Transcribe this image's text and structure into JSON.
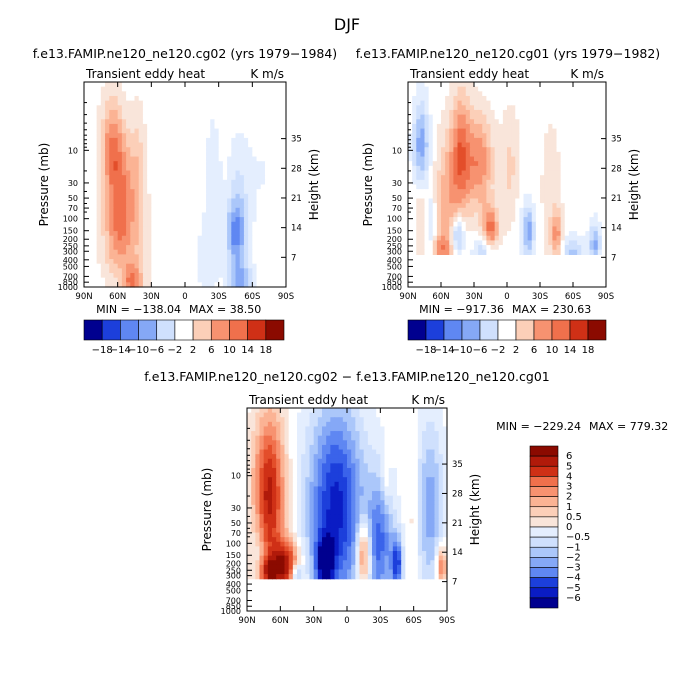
{
  "figure": {
    "title": "DJF"
  },
  "palette": {
    "blues": [
      "#00008f",
      "#0a1cc4",
      "#1c3fdb",
      "#3a63ea",
      "#5f87f2",
      "#85a8f6",
      "#abc7fa",
      "#cfe0fd",
      "#e4eefe"
    ],
    "reds": [
      "#f9e5da",
      "#fccfb8",
      "#fbb394",
      "#f79270",
      "#f0704c",
      "#e34e2a",
      "#cf3016",
      "#b11a0a",
      "#8b0a00"
    ],
    "white": "#ffffff"
  },
  "chart_data": [
    {
      "id": "panel-a",
      "type": "heatmap",
      "subtype": "latitude-pressure contour",
      "title": "f.e13.FAMIP.ne120_ne120.cg02 (yrs 1979−1984)",
      "left_string": "Transient eddy heat",
      "right_string": "K m/s",
      "xlabel": "",
      "ylabel": "Pressure (mb)",
      "ylabel_right": "Height (km)",
      "x_ticks": [
        "90N",
        "60N",
        "30N",
        "0",
        "30S",
        "60S",
        "90S"
      ],
      "x_range": [
        90,
        -90
      ],
      "y_ticks": [
        10,
        30,
        50,
        70,
        100,
        150,
        200,
        250,
        300,
        400,
        500,
        700,
        850,
        1000
      ],
      "y_range": [
        1,
        1000
      ],
      "y_scale": "log",
      "height_ticks": [
        35,
        28,
        21,
        14,
        7
      ],
      "min_text": "MIN = −138.04",
      "max_text": "MAX = 38.50",
      "data_bottom_mb": 1000,
      "colorbar": {
        "orientation": "horizontal",
        "labels": [
          "−18",
          "−14",
          "−10",
          "−6",
          "−2",
          "2",
          "6",
          "10",
          "14",
          "18"
        ]
      },
      "features": [
        {
          "lat": 65,
          "p": 10,
          "v": 1.3,
          "sl": 10,
          "sp": 0.75
        },
        {
          "lat": 55,
          "p": 40,
          "v": 1.0,
          "sl": 11,
          "sp": 0.8
        },
        {
          "lat": 60,
          "p": 200,
          "v": 0.9,
          "sl": 14,
          "sp": 0.6
        },
        {
          "lat": 47,
          "p": 900,
          "v": 1.3,
          "sl": 8,
          "sp": 0.3
        },
        {
          "lat": 42,
          "p": 20,
          "v": 0.55,
          "sl": 7,
          "sp": 0.9
        },
        {
          "lat": 40,
          "p": 300,
          "v": 0.3,
          "sl": 10,
          "sp": 0.8
        },
        {
          "lat": 15,
          "p": 100,
          "v": 0.15,
          "sl": 12,
          "sp": 1.5
        },
        {
          "lat": -45,
          "p": 170,
          "v": -1.2,
          "sl": 8,
          "sp": 0.45
        },
        {
          "lat": -48,
          "p": 60,
          "v": -0.55,
          "sl": 10,
          "sp": 0.9
        },
        {
          "lat": -50,
          "p": 900,
          "v": -1.1,
          "sl": 10,
          "sp": 0.3
        },
        {
          "lat": -25,
          "p": 25,
          "v": -0.35,
          "sl": 7,
          "sp": 0.9
        },
        {
          "lat": -20,
          "p": 400,
          "v": -0.25,
          "sl": 12,
          "sp": 0.7
        },
        {
          "lat": -70,
          "p": 20,
          "v": -0.15,
          "sl": 15,
          "sp": 1.0
        }
      ]
    },
    {
      "id": "panel-b",
      "type": "heatmap",
      "subtype": "latitude-pressure contour",
      "title": "f.e13.FAMIP.ne120_ne120.cg01 (yrs 1979−1982)",
      "left_string": "Transient eddy heat",
      "right_string": "K m/s",
      "xlabel": "",
      "ylabel": "Pressure (mb)",
      "ylabel_right": "Height (km)",
      "x_ticks": [
        "90N",
        "60N",
        "30N",
        "0",
        "30S",
        "60S",
        "90S"
      ],
      "x_range": [
        90,
        -90
      ],
      "y_ticks": [
        10,
        30,
        50,
        70,
        100,
        150,
        200,
        250,
        300,
        400,
        500,
        700,
        850,
        1000
      ],
      "y_range": [
        1,
        1000
      ],
      "y_scale": "log",
      "height_ticks": [
        35,
        28,
        21,
        14,
        7
      ],
      "min_text": "MIN = −917.36",
      "max_text": "MAX = 230.63",
      "data_bottom_mb": 310,
      "colorbar": {
        "orientation": "horizontal",
        "labels": [
          "−18",
          "−14",
          "−10",
          "−6",
          "−2",
          "2",
          "6",
          "10",
          "14",
          "18"
        ]
      },
      "features": [
        {
          "lat": 78,
          "p": 10,
          "v": -1.4,
          "sl": 7,
          "sp": 0.7
        },
        {
          "lat": 70,
          "p": 150,
          "v": -0.6,
          "sl": 5,
          "sp": 0.5
        },
        {
          "lat": 42,
          "p": 12,
          "v": 1.5,
          "sl": 9,
          "sp": 0.9
        },
        {
          "lat": 25,
          "p": 15,
          "v": 1.3,
          "sl": 12,
          "sp": 0.7
        },
        {
          "lat": 55,
          "p": 60,
          "v": 0.9,
          "sl": 10,
          "sp": 1.0
        },
        {
          "lat": 78,
          "p": 60,
          "v": 0.7,
          "sl": 6,
          "sp": 0.7
        },
        {
          "lat": 45,
          "p": 180,
          "v": -1.3,
          "sl": 6,
          "sp": 0.3
        },
        {
          "lat": 15,
          "p": 150,
          "v": 1.5,
          "sl": 7,
          "sp": 0.35
        },
        {
          "lat": -20,
          "p": 150,
          "v": -1.2,
          "sl": 5,
          "sp": 0.35
        },
        {
          "lat": -45,
          "p": 170,
          "v": 1.1,
          "sl": 5,
          "sp": 0.35
        },
        {
          "lat": -80,
          "p": 230,
          "v": -1.1,
          "sl": 5,
          "sp": 0.3
        },
        {
          "lat": -5,
          "p": 20,
          "v": 0.6,
          "sl": 10,
          "sp": 0.9
        },
        {
          "lat": -12,
          "p": 60,
          "v": -0.3,
          "sl": 8,
          "sp": 1.2
        },
        {
          "lat": -40,
          "p": 40,
          "v": 0.3,
          "sl": 10,
          "sp": 1.2
        },
        {
          "lat": 60,
          "p": 280,
          "v": 0.9,
          "sl": 10,
          "sp": 0.2
        },
        {
          "lat": 20,
          "p": 290,
          "v": -0.9,
          "sl": 10,
          "sp": 0.2
        },
        {
          "lat": -60,
          "p": 290,
          "v": -0.8,
          "sl": 10,
          "sp": 0.2
        }
      ]
    },
    {
      "id": "panel-c",
      "type": "heatmap",
      "subtype": "latitude-pressure contour (difference)",
      "title": "f.e13.FAMIP.ne120_ne120.cg02 − f.e13.FAMIP.ne120_ne120.cg01",
      "left_string": "Transient eddy heat",
      "right_string": "K m/s",
      "xlabel": "",
      "ylabel": "Pressure (mb)",
      "ylabel_right": "Height (km)",
      "x_ticks": [
        "90N",
        "60N",
        "30N",
        "0",
        "30S",
        "60S",
        "90S"
      ],
      "x_range": [
        90,
        -90
      ],
      "y_ticks": [
        10,
        30,
        50,
        70,
        100,
        150,
        200,
        250,
        300,
        400,
        500,
        700,
        850,
        1000
      ],
      "y_range": [
        1,
        1000
      ],
      "y_scale": "log",
      "height_ticks": [
        35,
        28,
        21,
        14,
        7
      ],
      "min_text": "MIN = −229.24",
      "max_text": "MAX = 779.32",
      "data_bottom_mb": 310,
      "colorbar": {
        "orientation": "vertical",
        "labels": [
          "6",
          "5",
          "4",
          "3",
          "2",
          "1",
          "0.5",
          "0",
          "−0.5",
          "−1",
          "−2",
          "−3",
          "−4",
          "−5",
          "−6"
        ]
      },
      "features": [
        {
          "lat": 70,
          "p": 20,
          "v": 2.4,
          "sl": 14,
          "sp": 1.2
        },
        {
          "lat": 55,
          "p": 200,
          "v": 2.2,
          "sl": 12,
          "sp": 0.35
        },
        {
          "lat": 10,
          "p": 30,
          "v": -2.4,
          "sl": 25,
          "sp": 1.5
        },
        {
          "lat": 20,
          "p": 200,
          "v": -2.0,
          "sl": 8,
          "sp": 0.4
        },
        {
          "lat": -30,
          "p": 100,
          "v": -1.6,
          "sl": 12,
          "sp": 1.0
        },
        {
          "lat": -15,
          "p": 150,
          "v": 2.0,
          "sl": 6,
          "sp": 0.5
        },
        {
          "lat": -45,
          "p": 200,
          "v": -2.0,
          "sl": 5,
          "sp": 0.4
        },
        {
          "lat": -75,
          "p": 30,
          "v": -1.2,
          "sl": 12,
          "sp": 1.3
        },
        {
          "lat": -60,
          "p": 40,
          "v": 0.4,
          "sl": 4,
          "sp": 1.2
        },
        {
          "lat": -35,
          "p": 12,
          "v": 0.6,
          "sl": 4,
          "sp": 0.4
        },
        {
          "lat": -85,
          "p": 220,
          "v": 1.6,
          "sl": 5,
          "sp": 0.3
        },
        {
          "lat": 80,
          "p": 130,
          "v": -0.5,
          "sl": 6,
          "sp": 0.6
        },
        {
          "lat": 45,
          "p": 280,
          "v": -1.5,
          "sl": 4,
          "sp": 0.15
        },
        {
          "lat": 70,
          "p": 270,
          "v": 1.5,
          "sl": 10,
          "sp": 0.2
        }
      ]
    }
  ]
}
